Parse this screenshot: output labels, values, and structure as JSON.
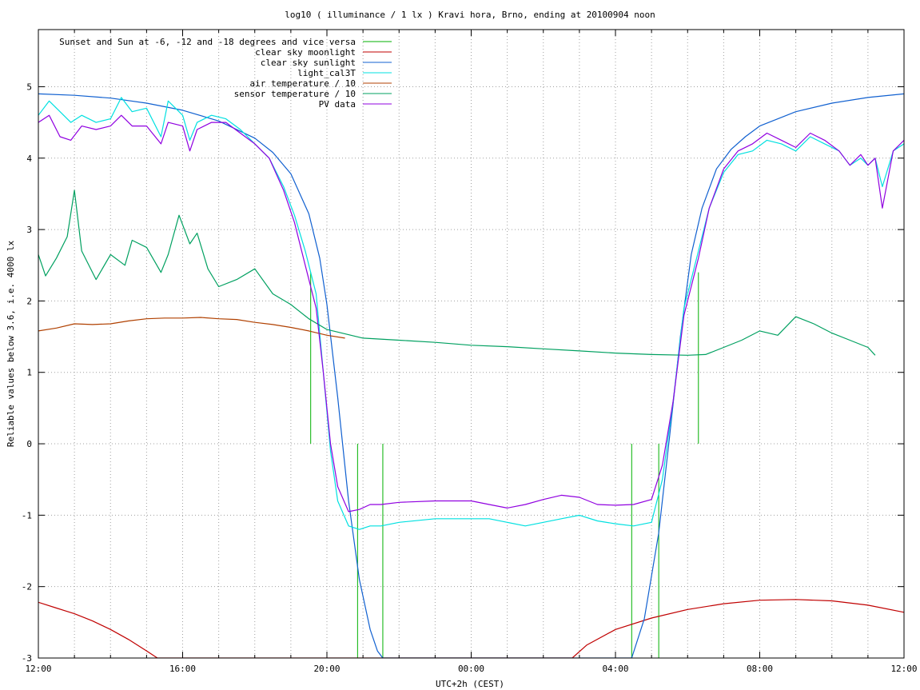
{
  "chart_data": {
    "type": "line",
    "title": "log10 ( illuminance / 1 lx ) Kravi hora, Brno, ending at 20100904 noon",
    "xlabel": "UTC+2h (CEST)",
    "ylabel": "Reliable values below 3.6, i.e. 4000 lx",
    "xlim": [
      0,
      24
    ],
    "ylim": [
      -3,
      5.8
    ],
    "x_ticks": [
      {
        "value": 0,
        "label": "12:00"
      },
      {
        "value": 4,
        "label": "16:00"
      },
      {
        "value": 8,
        "label": "20:00"
      },
      {
        "value": 12,
        "label": "00:00"
      },
      {
        "value": 16,
        "label": "04:00"
      },
      {
        "value": 20,
        "label": "08:00"
      },
      {
        "value": 24,
        "label": "12:00"
      }
    ],
    "y_ticks": [
      {
        "value": -3,
        "label": "-3"
      },
      {
        "value": -2,
        "label": "-2"
      },
      {
        "value": -1,
        "label": "-1"
      },
      {
        "value": 0,
        "label": "0"
      },
      {
        "value": 1,
        "label": "1"
      },
      {
        "value": 2,
        "label": "2"
      },
      {
        "value": 3,
        "label": "3"
      },
      {
        "value": 4,
        "label": "4"
      },
      {
        "value": 5,
        "label": "5"
      }
    ],
    "grid": true,
    "legend_position": "top-left",
    "series": [
      {
        "name": "Sunset and Sun at -6, -12 and -18 degrees and vice versa",
        "color": "#00b000",
        "style": "impulses",
        "x": [
          7.55,
          8.85,
          9.55,
          16.45,
          17.2,
          18.3
        ],
        "y": [
          2.4,
          -3,
          -3,
          -3,
          -3,
          2.4
        ]
      },
      {
        "name": "clear sky moonlight",
        "color": "#c00000",
        "x": [
          0,
          0.5,
          1,
          1.5,
          2,
          2.5,
          3,
          3.3,
          14.8,
          15.2,
          16,
          17,
          18,
          19,
          20,
          21,
          22,
          23,
          24
        ],
        "y": [
          -2.22,
          -2.3,
          -2.38,
          -2.48,
          -2.6,
          -2.74,
          -2.9,
          -3,
          -3,
          -2.82,
          -2.6,
          -2.44,
          -2.32,
          -2.24,
          -2.19,
          -2.18,
          -2.2,
          -2.26,
          -2.36
        ]
      },
      {
        "name": "clear sky sunlight",
        "color": "#1060d0",
        "x": [
          0,
          1,
          2,
          3,
          4,
          5,
          6,
          6.5,
          7,
          7.5,
          7.8,
          8.0,
          8.3,
          8.6,
          8.9,
          9.2,
          9.4,
          9.55,
          16.45,
          16.8,
          17.2,
          17.5,
          17.8,
          18.1,
          18.4,
          18.8,
          19.2,
          19.6,
          20,
          21,
          22,
          23,
          24
        ],
        "y": [
          4.9,
          4.88,
          4.84,
          4.77,
          4.67,
          4.52,
          4.28,
          4.08,
          3.78,
          3.22,
          2.6,
          1.95,
          0.65,
          -0.8,
          -1.9,
          -2.6,
          -2.9,
          -3,
          -3,
          -2.45,
          -1.25,
          0.1,
          1.5,
          2.65,
          3.3,
          3.85,
          4.12,
          4.3,
          4.45,
          4.65,
          4.77,
          4.85,
          4.9
        ]
      },
      {
        "name": "light_cal3T",
        "color": "#00e0e0",
        "x": [
          0,
          0.3,
          0.6,
          0.9,
          1.2,
          1.6,
          2.0,
          2.3,
          2.6,
          3.0,
          3.4,
          3.6,
          4.0,
          4.2,
          4.4,
          4.8,
          5.2,
          5.6,
          6.0,
          6.4,
          6.8,
          7.1,
          7.4,
          7.7,
          7.9,
          8.1,
          8.3,
          8.6,
          8.9,
          9.2,
          9.5,
          10,
          11,
          12,
          12.5,
          13,
          13.5,
          14,
          14.5,
          15,
          15.5,
          16,
          16.5,
          17,
          17.3,
          17.6,
          17.9,
          18.3,
          18.6,
          19.0,
          19.4,
          19.8,
          20.2,
          20.6,
          21,
          21.4,
          21.8,
          22.2,
          22.5,
          22.8,
          23.0,
          23.2,
          23.4,
          23.7,
          24
        ],
        "y": [
          4.6,
          4.8,
          4.65,
          4.5,
          4.6,
          4.5,
          4.55,
          4.85,
          4.65,
          4.7,
          4.3,
          4.8,
          4.6,
          4.25,
          4.5,
          4.6,
          4.55,
          4.4,
          4.2,
          4.0,
          3.6,
          3.2,
          2.7,
          2.1,
          1.0,
          -0.1,
          -0.8,
          -1.15,
          -1.2,
          -1.15,
          -1.15,
          -1.1,
          -1.05,
          -1.05,
          -1.05,
          -1.1,
          -1.15,
          -1.1,
          -1.05,
          -1.0,
          -1.08,
          -1.12,
          -1.15,
          -1.1,
          -0.5,
          0.6,
          1.9,
          2.7,
          3.3,
          3.8,
          4.05,
          4.1,
          4.25,
          4.2,
          4.1,
          4.3,
          4.2,
          4.1,
          3.9,
          4.0,
          3.9,
          4.0,
          3.6,
          4.1,
          4.2
        ]
      },
      {
        "name": "air temperature / 10",
        "color": "#b04000",
        "x": [
          0,
          0.5,
          1,
          1.5,
          2,
          2.5,
          3,
          3.5,
          4,
          4.5,
          5,
          5.5,
          6,
          6.5,
          7,
          7.5,
          8,
          8.5
        ],
        "y": [
          1.58,
          1.62,
          1.68,
          1.67,
          1.68,
          1.72,
          1.75,
          1.76,
          1.76,
          1.77,
          1.75,
          1.74,
          1.7,
          1.67,
          1.63,
          1.58,
          1.52,
          1.48
        ]
      },
      {
        "name": "sensor temperature / 10",
        "color": "#00a060",
        "x": [
          0,
          0.2,
          0.5,
          0.8,
          1.0,
          1.2,
          1.6,
          2.0,
          2.4,
          2.6,
          3.0,
          3.4,
          3.6,
          3.9,
          4.2,
          4.4,
          4.7,
          5.0,
          5.5,
          6.0,
          6.5,
          7.0,
          7.5,
          8.0,
          9,
          10,
          11,
          12,
          13,
          14,
          15,
          16,
          17,
          18,
          18.5,
          19,
          19.5,
          20,
          20.5,
          21,
          21.5,
          22,
          22.5,
          23.0,
          23.2
        ],
        "y": [
          2.65,
          2.35,
          2.6,
          2.9,
          3.55,
          2.7,
          2.3,
          2.65,
          2.5,
          2.85,
          2.75,
          2.4,
          2.65,
          3.2,
          2.8,
          2.95,
          2.45,
          2.2,
          2.3,
          2.45,
          2.1,
          1.95,
          1.75,
          1.6,
          1.48,
          1.45,
          1.42,
          1.38,
          1.36,
          1.33,
          1.3,
          1.27,
          1.25,
          1.24,
          1.25,
          1.35,
          1.45,
          1.58,
          1.52,
          1.78,
          1.68,
          1.55,
          1.45,
          1.35,
          1.24
        ]
      },
      {
        "name": "PV data",
        "color": "#9000e0",
        "x": [
          0,
          0.3,
          0.6,
          0.9,
          1.2,
          1.6,
          2.0,
          2.3,
          2.6,
          3.0,
          3.4,
          3.6,
          4.0,
          4.2,
          4.4,
          4.8,
          5.2,
          5.6,
          6.0,
          6.4,
          6.8,
          7.1,
          7.4,
          7.7,
          7.9,
          8.1,
          8.3,
          8.6,
          8.9,
          9.2,
          9.5,
          10,
          11,
          12,
          12.5,
          13,
          13.5,
          14,
          14.5,
          15,
          15.5,
          16,
          16.5,
          17,
          17.3,
          17.6,
          17.9,
          18.3,
          18.6,
          19.0,
          19.4,
          19.8,
          20.2,
          20.6,
          21,
          21.4,
          21.8,
          22.2,
          22.5,
          22.8,
          23.0,
          23.2,
          23.4,
          23.7,
          24
        ],
        "y": [
          4.5,
          4.6,
          4.3,
          4.25,
          4.45,
          4.4,
          4.45,
          4.6,
          4.45,
          4.45,
          4.2,
          4.5,
          4.45,
          4.1,
          4.4,
          4.5,
          4.5,
          4.35,
          4.2,
          4.0,
          3.55,
          3.1,
          2.5,
          1.9,
          1.0,
          0.0,
          -0.6,
          -0.95,
          -0.92,
          -0.85,
          -0.85,
          -0.82,
          -0.8,
          -0.8,
          -0.85,
          -0.9,
          -0.85,
          -0.78,
          -0.72,
          -0.75,
          -0.85,
          -0.86,
          -0.85,
          -0.78,
          -0.3,
          0.6,
          1.8,
          2.6,
          3.3,
          3.85,
          4.1,
          4.2,
          4.35,
          4.25,
          4.15,
          4.35,
          4.25,
          4.1,
          3.9,
          4.05,
          3.9,
          4.0,
          3.3,
          4.1,
          4.25
        ]
      }
    ]
  }
}
